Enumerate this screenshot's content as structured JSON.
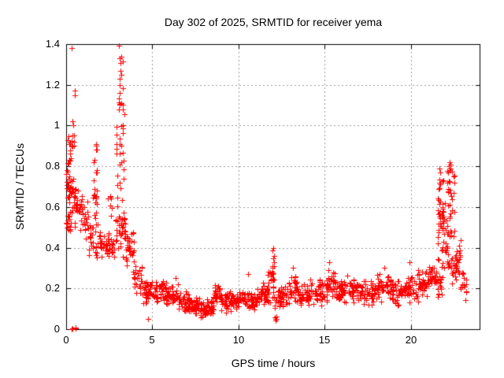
{
  "chart_data": {
    "type": "scatter",
    "title": "Day 302 of 2025, SRMTID for receiver yema",
    "xlabel": "GPS time / hours",
    "ylabel": "SRMTID / TECUs",
    "xlim": [
      0,
      24
    ],
    "ylim": [
      0,
      1.4
    ],
    "xticks": [
      0,
      5,
      10,
      15,
      20
    ],
    "xtick_labels": [
      "0",
      "5",
      "10",
      "15",
      "20"
    ],
    "yticks": [
      0,
      0.2,
      0.4,
      0.6,
      0.8,
      1,
      1.2,
      1.4
    ],
    "ytick_labels": [
      "0",
      "0.2",
      "0.4",
      "0.6",
      "0.8",
      "1",
      "1.2",
      "1.4"
    ],
    "grid": true,
    "legend": "none",
    "marker": "plus",
    "colors": {
      "marker": "#ff0000",
      "grid": "#999999",
      "axis": "#000000",
      "text": "#000000",
      "background": "#ffffff"
    },
    "scatter_segments_format": "[x_start_hours, x_end_hours, y_min_TECUs, y_max_TECUs, n_points]",
    "scatter_segments": [
      [
        0.02,
        0.25,
        0.48,
        0.85,
        40
      ],
      [
        0.05,
        0.5,
        0.8,
        0.98,
        12
      ],
      [
        0.2,
        0.55,
        0.0,
        0.01,
        5
      ],
      [
        0.25,
        0.6,
        0.5,
        0.78,
        28
      ],
      [
        0.6,
        0.95,
        0.48,
        0.72,
        20
      ],
      [
        0.95,
        1.3,
        0.42,
        0.66,
        18
      ],
      [
        1.3,
        1.6,
        0.36,
        0.55,
        16
      ],
      [
        1.55,
        1.85,
        0.5,
        0.92,
        24
      ],
      [
        1.7,
        2.15,
        0.33,
        0.5,
        22
      ],
      [
        2.15,
        2.7,
        0.34,
        0.5,
        30
      ],
      [
        2.4,
        2.7,
        0.52,
        0.68,
        7
      ],
      [
        2.75,
        3.45,
        0.33,
        0.62,
        40
      ],
      [
        2.9,
        3.4,
        0.62,
        1.06,
        26
      ],
      [
        3.05,
        3.32,
        1.06,
        1.4,
        14
      ],
      [
        3.45,
        3.95,
        0.26,
        0.5,
        30
      ],
      [
        3.95,
        4.4,
        0.16,
        0.33,
        26
      ],
      [
        4.4,
        5.1,
        0.11,
        0.25,
        42
      ],
      [
        5.1,
        5.8,
        0.12,
        0.24,
        44
      ],
      [
        5.8,
        6.5,
        0.1,
        0.23,
        44
      ],
      [
        6.5,
        7.2,
        0.08,
        0.2,
        46
      ],
      [
        7.2,
        7.9,
        0.05,
        0.17,
        46
      ],
      [
        7.9,
        8.55,
        0.05,
        0.15,
        46
      ],
      [
        8.55,
        8.95,
        0.11,
        0.24,
        26
      ],
      [
        8.95,
        9.7,
        0.08,
        0.19,
        44
      ],
      [
        9.7,
        10.45,
        0.09,
        0.2,
        44
      ],
      [
        10.45,
        11.1,
        0.08,
        0.2,
        44
      ],
      [
        11.1,
        11.7,
        0.1,
        0.25,
        38
      ],
      [
        11.7,
        12.05,
        0.12,
        0.31,
        22
      ],
      [
        11.95,
        12.1,
        0.2,
        0.41,
        9
      ],
      [
        12.0,
        12.25,
        0.02,
        0.09,
        5
      ],
      [
        12.1,
        12.95,
        0.09,
        0.22,
        44
      ],
      [
        12.95,
        13.45,
        0.12,
        0.28,
        28
      ],
      [
        13.45,
        14.15,
        0.1,
        0.24,
        40
      ],
      [
        14.15,
        14.95,
        0.11,
        0.26,
        42
      ],
      [
        14.95,
        15.65,
        0.12,
        0.3,
        40
      ],
      [
        15.65,
        16.45,
        0.12,
        0.27,
        44
      ],
      [
        16.45,
        17.25,
        0.12,
        0.26,
        44
      ],
      [
        17.25,
        18.05,
        0.1,
        0.25,
        44
      ],
      [
        18.05,
        18.85,
        0.12,
        0.3,
        44
      ],
      [
        18.85,
        19.65,
        0.1,
        0.26,
        44
      ],
      [
        19.65,
        20.45,
        0.12,
        0.28,
        44
      ],
      [
        20.45,
        21.05,
        0.15,
        0.31,
        36
      ],
      [
        21.05,
        21.5,
        0.18,
        0.34,
        28
      ],
      [
        21.55,
        22.0,
        0.3,
        0.79,
        40
      ],
      [
        21.6,
        21.95,
        0.45,
        0.62,
        14
      ],
      [
        21.5,
        22.05,
        0.14,
        0.3,
        16
      ],
      [
        22.0,
        22.15,
        0.3,
        0.56,
        10
      ],
      [
        22.12,
        22.55,
        0.3,
        0.82,
        44
      ],
      [
        22.35,
        22.65,
        0.2,
        0.35,
        10
      ],
      [
        22.55,
        22.9,
        0.22,
        0.45,
        22
      ],
      [
        22.9,
        23.25,
        0.12,
        0.3,
        18
      ]
    ],
    "outlier_points": [
      [
        0.33,
        1.38
      ],
      [
        0.5,
        1.17
      ],
      [
        0.52,
        1.15
      ],
      [
        0.36,
        1.02
      ],
      [
        0.4,
        1.0
      ],
      [
        0.44,
        0.95
      ],
      [
        0.3,
        0.9
      ],
      [
        1.72,
        0.91
      ],
      [
        1.78,
        0.88
      ],
      [
        3.1,
        1.16
      ],
      [
        3.12,
        1.2
      ],
      [
        3.2,
        1.25
      ],
      [
        3.22,
        1.11
      ],
      [
        3.08,
        1.08
      ],
      [
        12.02,
        0.4
      ],
      [
        12.0,
        0.35
      ],
      [
        11.98,
        0.31
      ],
      [
        22.28,
        0.82
      ],
      [
        22.33,
        0.81
      ],
      [
        22.2,
        0.8
      ],
      [
        21.68,
        0.79
      ],
      [
        21.72,
        0.77
      ],
      [
        15.25,
        0.33
      ],
      [
        19.95,
        0.33
      ],
      [
        13.15,
        0.3
      ],
      [
        18.45,
        0.3
      ],
      [
        6.35,
        0.25
      ],
      [
        10.55,
        0.27
      ],
      [
        4.77,
        0.05
      ]
    ]
  }
}
